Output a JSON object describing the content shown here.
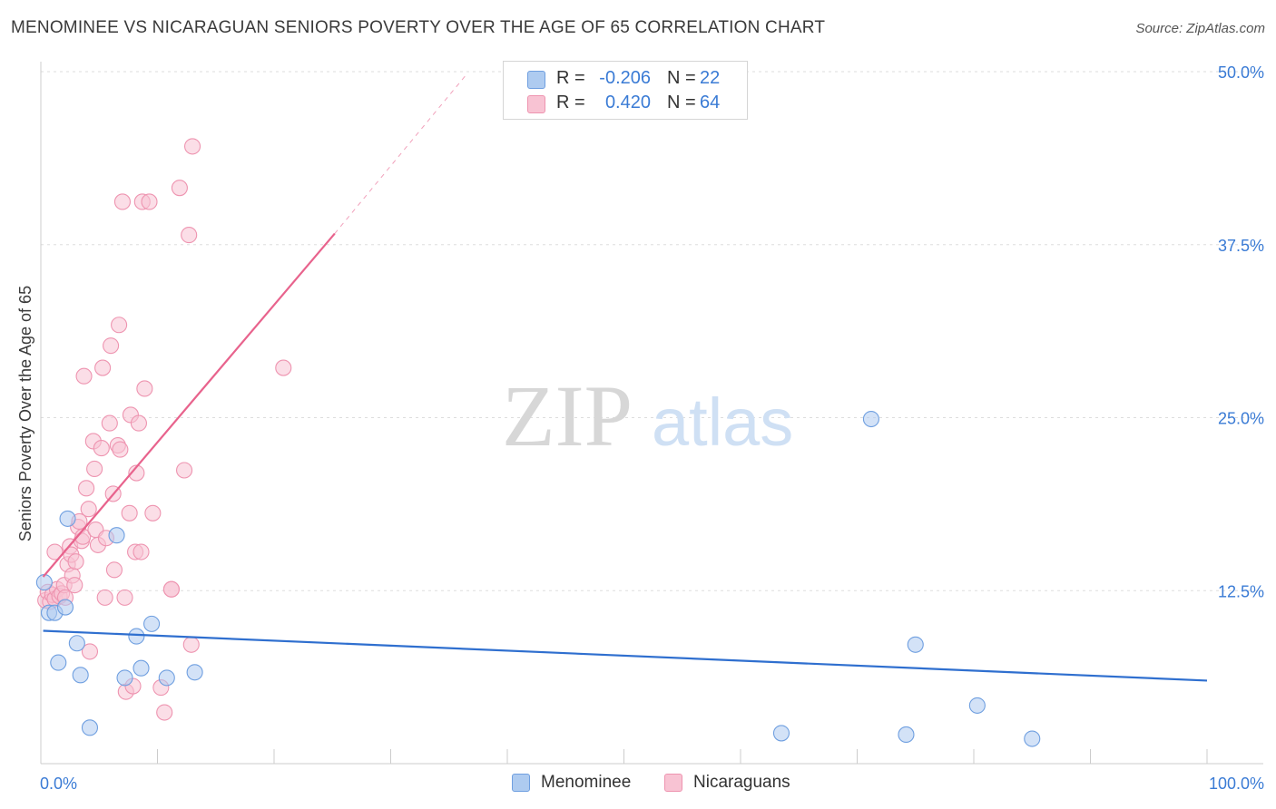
{
  "title": "MENOMINEE VS NICARAGUAN SENIORS POVERTY OVER THE AGE OF 65 CORRELATION CHART",
  "source": "Source: ZipAtlas.com",
  "watermark": {
    "zip": "ZIP",
    "atlas": "atlas"
  },
  "legend": {
    "rows": [
      {
        "r_label": "R =",
        "r_value": "-0.206",
        "n_label": "N =",
        "n_value": "22",
        "color": "#aecbf0",
        "border": "#6f9fe0"
      },
      {
        "r_label": "R =",
        "r_value": "0.420",
        "n_label": "N =",
        "n_value": "64",
        "color": "#f8c3d3",
        "border": "#ee94b0"
      }
    ]
  },
  "bottom_legend": [
    {
      "label": "Menominee",
      "color": "#aecbf0",
      "border": "#6f9fe0"
    },
    {
      "label": "Nicaraguans",
      "color": "#f8c3d3",
      "border": "#ee94b0"
    }
  ],
  "chart_data": {
    "type": "scatter",
    "title": "MENOMINEE VS NICARAGUAN SENIORS POVERTY OVER THE AGE OF 65 CORRELATION CHART",
    "xlabel": "",
    "ylabel": "Seniors Poverty Over the Age of 65",
    "xlim": [
      0,
      100
    ],
    "ylim": [
      0,
      50
    ],
    "x_tick_labels": {
      "left": "0.0%",
      "right": "100.0%"
    },
    "y_ticks": [
      {
        "value": 12.5,
        "label": "12.5%"
      },
      {
        "value": 25.0,
        "label": "25.0%"
      },
      {
        "value": 37.5,
        "label": "37.5%"
      },
      {
        "value": 50.0,
        "label": "50.0%"
      }
    ],
    "series": [
      {
        "name": "Menominee",
        "color": "#aecbf0",
        "stroke": "#6f9fe0",
        "line_color": "#2f6fcf",
        "trend": {
          "x0": 0.2,
          "y0": 9.6,
          "x1": 100,
          "y1": 6.0,
          "dash_to": null
        },
        "points": [
          [
            0.3,
            13.1
          ],
          [
            0.7,
            10.9
          ],
          [
            1.2,
            10.9
          ],
          [
            1.5,
            7.3
          ],
          [
            2.1,
            11.3
          ],
          [
            2.3,
            17.7
          ],
          [
            3.1,
            8.7
          ],
          [
            3.4,
            6.4
          ],
          [
            4.2,
            2.6
          ],
          [
            6.5,
            16.5
          ],
          [
            7.2,
            6.2
          ],
          [
            8.2,
            9.2
          ],
          [
            8.6,
            6.9
          ],
          [
            9.5,
            10.1
          ],
          [
            10.8,
            6.2
          ],
          [
            13.2,
            6.6
          ],
          [
            63.5,
            2.2
          ],
          [
            71.2,
            24.9
          ],
          [
            74.2,
            2.1
          ],
          [
            75.0,
            8.6
          ],
          [
            80.3,
            4.2
          ],
          [
            85.0,
            1.8
          ]
        ]
      },
      {
        "name": "Nicaraguans",
        "color": "#f8c3d3",
        "stroke": "#ee94b0",
        "line_color": "#e8638d",
        "trend": {
          "x0": 0.2,
          "y0": 13.5,
          "x1": 25.2,
          "y1": 38.3,
          "dash_to": [
            36.5,
            49.8
          ]
        },
        "points": [
          [
            0.4,
            11.8
          ],
          [
            0.6,
            12.4
          ],
          [
            0.8,
            11.7
          ],
          [
            1.0,
            12.2
          ],
          [
            1.2,
            11.9
          ],
          [
            1.4,
            12.6
          ],
          [
            1.2,
            15.3
          ],
          [
            1.6,
            12.1
          ],
          [
            1.8,
            12.3
          ],
          [
            2.0,
            12.9
          ],
          [
            2.1,
            12.0
          ],
          [
            2.3,
            14.4
          ],
          [
            2.5,
            15.7
          ],
          [
            2.7,
            13.6
          ],
          [
            2.6,
            15.1
          ],
          [
            2.9,
            12.9
          ],
          [
            3.0,
            14.6
          ],
          [
            3.2,
            17.1
          ],
          [
            3.3,
            17.5
          ],
          [
            3.5,
            16.1
          ],
          [
            3.6,
            16.4
          ],
          [
            3.7,
            28.0
          ],
          [
            3.9,
            19.9
          ],
          [
            4.1,
            18.4
          ],
          [
            4.2,
            8.1
          ],
          [
            4.5,
            23.3
          ],
          [
            4.6,
            21.3
          ],
          [
            4.7,
            16.9
          ],
          [
            4.9,
            15.8
          ],
          [
            5.2,
            22.8
          ],
          [
            5.3,
            28.6
          ],
          [
            5.6,
            16.3
          ],
          [
            5.5,
            12.0
          ],
          [
            5.9,
            24.6
          ],
          [
            6.0,
            30.2
          ],
          [
            6.2,
            19.5
          ],
          [
            6.3,
            14.0
          ],
          [
            6.6,
            23.0
          ],
          [
            6.7,
            31.7
          ],
          [
            6.8,
            22.7
          ],
          [
            7.0,
            40.6
          ],
          [
            7.2,
            12.0
          ],
          [
            7.3,
            5.2
          ],
          [
            7.6,
            18.1
          ],
          [
            7.7,
            25.2
          ],
          [
            7.9,
            5.6
          ],
          [
            8.1,
            15.3
          ],
          [
            8.2,
            21.0
          ],
          [
            8.4,
            24.6
          ],
          [
            8.6,
            15.3
          ],
          [
            8.7,
            40.6
          ],
          [
            8.9,
            27.1
          ],
          [
            9.3,
            40.6
          ],
          [
            9.6,
            18.1
          ],
          [
            10.3,
            5.5
          ],
          [
            10.6,
            3.7
          ],
          [
            11.2,
            12.6
          ],
          [
            11.9,
            41.6
          ],
          [
            12.3,
            21.2
          ],
          [
            12.7,
            38.2
          ],
          [
            12.9,
            8.6
          ],
          [
            13.0,
            44.6
          ],
          [
            20.8,
            28.6
          ],
          [
            11.2,
            12.6
          ]
        ]
      }
    ]
  }
}
